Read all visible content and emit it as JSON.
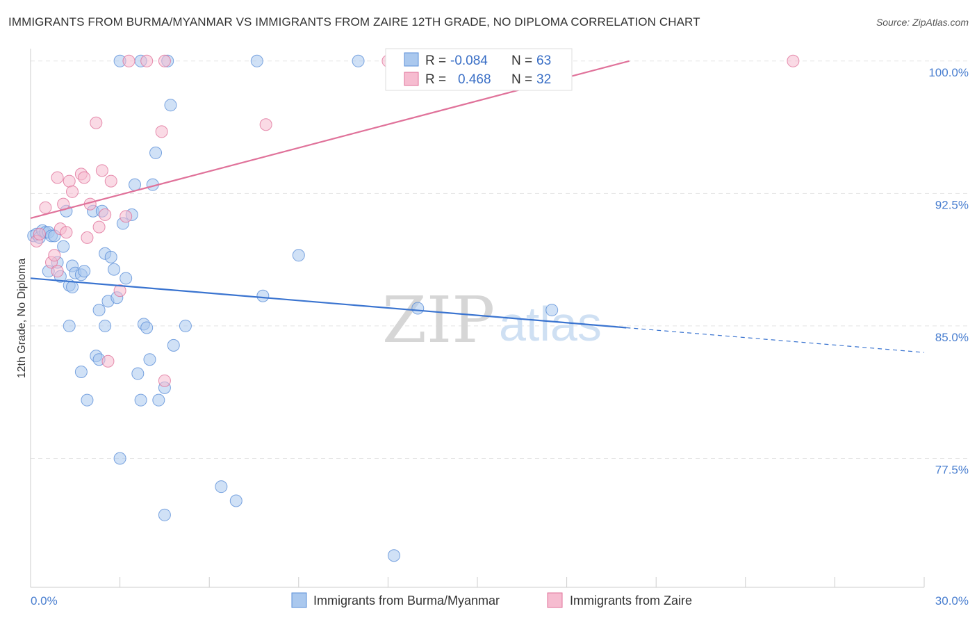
{
  "title": "IMMIGRANTS FROM BURMA/MYANMAR VS IMMIGRANTS FROM ZAIRE 12TH GRADE, NO DIPLOMA CORRELATION CHART",
  "source": "Source: ZipAtlas.com",
  "watermark": {
    "zip": "ZIP",
    "atlas": "atlas"
  },
  "colors": {
    "blue": "#5b8fd8",
    "blue_fill": "#aac8ee",
    "pink": "#e0729a",
    "pink_fill": "#f6bcd0",
    "tick_text": "#4a7fd0"
  },
  "chart_data": {
    "type": "scatter",
    "title": "IMMIGRANTS FROM BURMA/MYANMAR VS IMMIGRANTS FROM ZAIRE 12TH GRADE, NO DIPLOMA CORRELATION CHART",
    "xlabel": "",
    "ylabel": "12th Grade, No Diploma",
    "xlim": [
      0,
      30
    ],
    "ylim": [
      70.2,
      100.7
    ],
    "x_tick_labels": [
      "0.0%",
      "30.0%"
    ],
    "y_ticks": [
      77.5,
      85.0,
      92.5,
      100.0
    ],
    "y_tick_labels": [
      "77.5%",
      "85.0%",
      "92.5%",
      "100.0%"
    ],
    "legend": [
      {
        "name": "Immigrants from Burma/Myanmar",
        "r_label": "R =",
        "r": "-0.084",
        "n_label": "N =",
        "n": "63"
      },
      {
        "name": "Immigrants from Zaire",
        "r_label": "R =",
        "r": "0.468",
        "n_label": "N =",
        "n": "32"
      }
    ],
    "series": [
      {
        "name": "Immigrants from Burma/Myanmar",
        "color": "blue",
        "trend": {
          "x0": 0,
          "y0": 87.7,
          "x1": 20.0,
          "y1": 84.9,
          "dash_to_x": 30,
          "dash_to_y": 83.5
        },
        "points": [
          [
            0.1,
            90.1
          ],
          [
            0.2,
            90.2
          ],
          [
            0.3,
            90.0
          ],
          [
            0.4,
            90.4
          ],
          [
            0.5,
            90.3
          ],
          [
            0.6,
            90.3
          ],
          [
            0.7,
            90.1
          ],
          [
            0.8,
            90.1
          ],
          [
            0.6,
            88.1
          ],
          [
            0.9,
            88.6
          ],
          [
            1.1,
            89.5
          ],
          [
            1.2,
            91.5
          ],
          [
            1.0,
            87.8
          ],
          [
            1.3,
            87.3
          ],
          [
            1.4,
            88.4
          ],
          [
            1.5,
            88.0
          ],
          [
            1.7,
            87.9
          ],
          [
            1.8,
            88.1
          ],
          [
            1.3,
            85.0
          ],
          [
            1.4,
            87.2
          ],
          [
            2.1,
            91.5
          ],
          [
            2.4,
            91.5
          ],
          [
            2.5,
            89.1
          ],
          [
            2.7,
            88.9
          ],
          [
            2.8,
            88.2
          ],
          [
            2.3,
            85.9
          ],
          [
            2.5,
            85.0
          ],
          [
            2.6,
            86.4
          ],
          [
            2.9,
            86.6
          ],
          [
            3.1,
            90.8
          ],
          [
            3.2,
            87.7
          ],
          [
            3.4,
            91.3
          ],
          [
            3.5,
            93.0
          ],
          [
            4.1,
            93.0
          ],
          [
            4.2,
            94.8
          ],
          [
            4.7,
            97.5
          ],
          [
            3.8,
            85.1
          ],
          [
            3.9,
            84.9
          ],
          [
            4.0,
            83.1
          ],
          [
            4.8,
            83.9
          ],
          [
            5.2,
            85.0
          ],
          [
            2.2,
            83.3
          ],
          [
            2.3,
            83.1
          ],
          [
            1.7,
            82.4
          ],
          [
            3.6,
            82.3
          ],
          [
            1.9,
            80.8
          ],
          [
            3.7,
            80.8
          ],
          [
            4.3,
            80.8
          ],
          [
            4.5,
            81.5
          ],
          [
            3.0,
            77.5
          ],
          [
            6.4,
            75.9
          ],
          [
            6.9,
            75.1
          ],
          [
            4.5,
            74.3
          ],
          [
            7.6,
            100.0
          ],
          [
            9.0,
            89.0
          ],
          [
            7.8,
            86.7
          ],
          [
            11.0,
            100.0
          ],
          [
            12.2,
            72.0
          ],
          [
            13.0,
            86.0
          ],
          [
            17.5,
            85.9
          ],
          [
            3.0,
            100.0
          ],
          [
            4.6,
            100.0
          ],
          [
            3.7,
            100.0
          ]
        ]
      },
      {
        "name": "Immigrants from Zaire",
        "color": "pink",
        "trend": {
          "x0": 0,
          "y0": 91.1,
          "x1": 20.1,
          "y1": 100.0
        },
        "points": [
          [
            0.2,
            89.8
          ],
          [
            0.3,
            90.2
          ],
          [
            0.5,
            91.7
          ],
          [
            0.7,
            88.6
          ],
          [
            0.8,
            89.0
          ],
          [
            0.9,
            88.1
          ],
          [
            0.9,
            93.4
          ],
          [
            1.0,
            90.5
          ],
          [
            1.1,
            91.9
          ],
          [
            1.2,
            90.3
          ],
          [
            1.3,
            93.2
          ],
          [
            1.4,
            92.6
          ],
          [
            1.7,
            93.6
          ],
          [
            1.8,
            93.4
          ],
          [
            1.9,
            90.0
          ],
          [
            2.0,
            91.9
          ],
          [
            2.2,
            96.5
          ],
          [
            2.4,
            93.8
          ],
          [
            2.3,
            90.6
          ],
          [
            2.5,
            91.3
          ],
          [
            2.7,
            93.2
          ],
          [
            2.6,
            83.0
          ],
          [
            3.0,
            87.0
          ],
          [
            3.2,
            91.2
          ],
          [
            3.3,
            100.0
          ],
          [
            3.9,
            100.0
          ],
          [
            4.4,
            96.0
          ],
          [
            4.5,
            100.0
          ],
          [
            4.5,
            81.9
          ],
          [
            7.9,
            96.4
          ],
          [
            12.0,
            100.0
          ],
          [
            25.6,
            100.0
          ]
        ]
      }
    ]
  }
}
